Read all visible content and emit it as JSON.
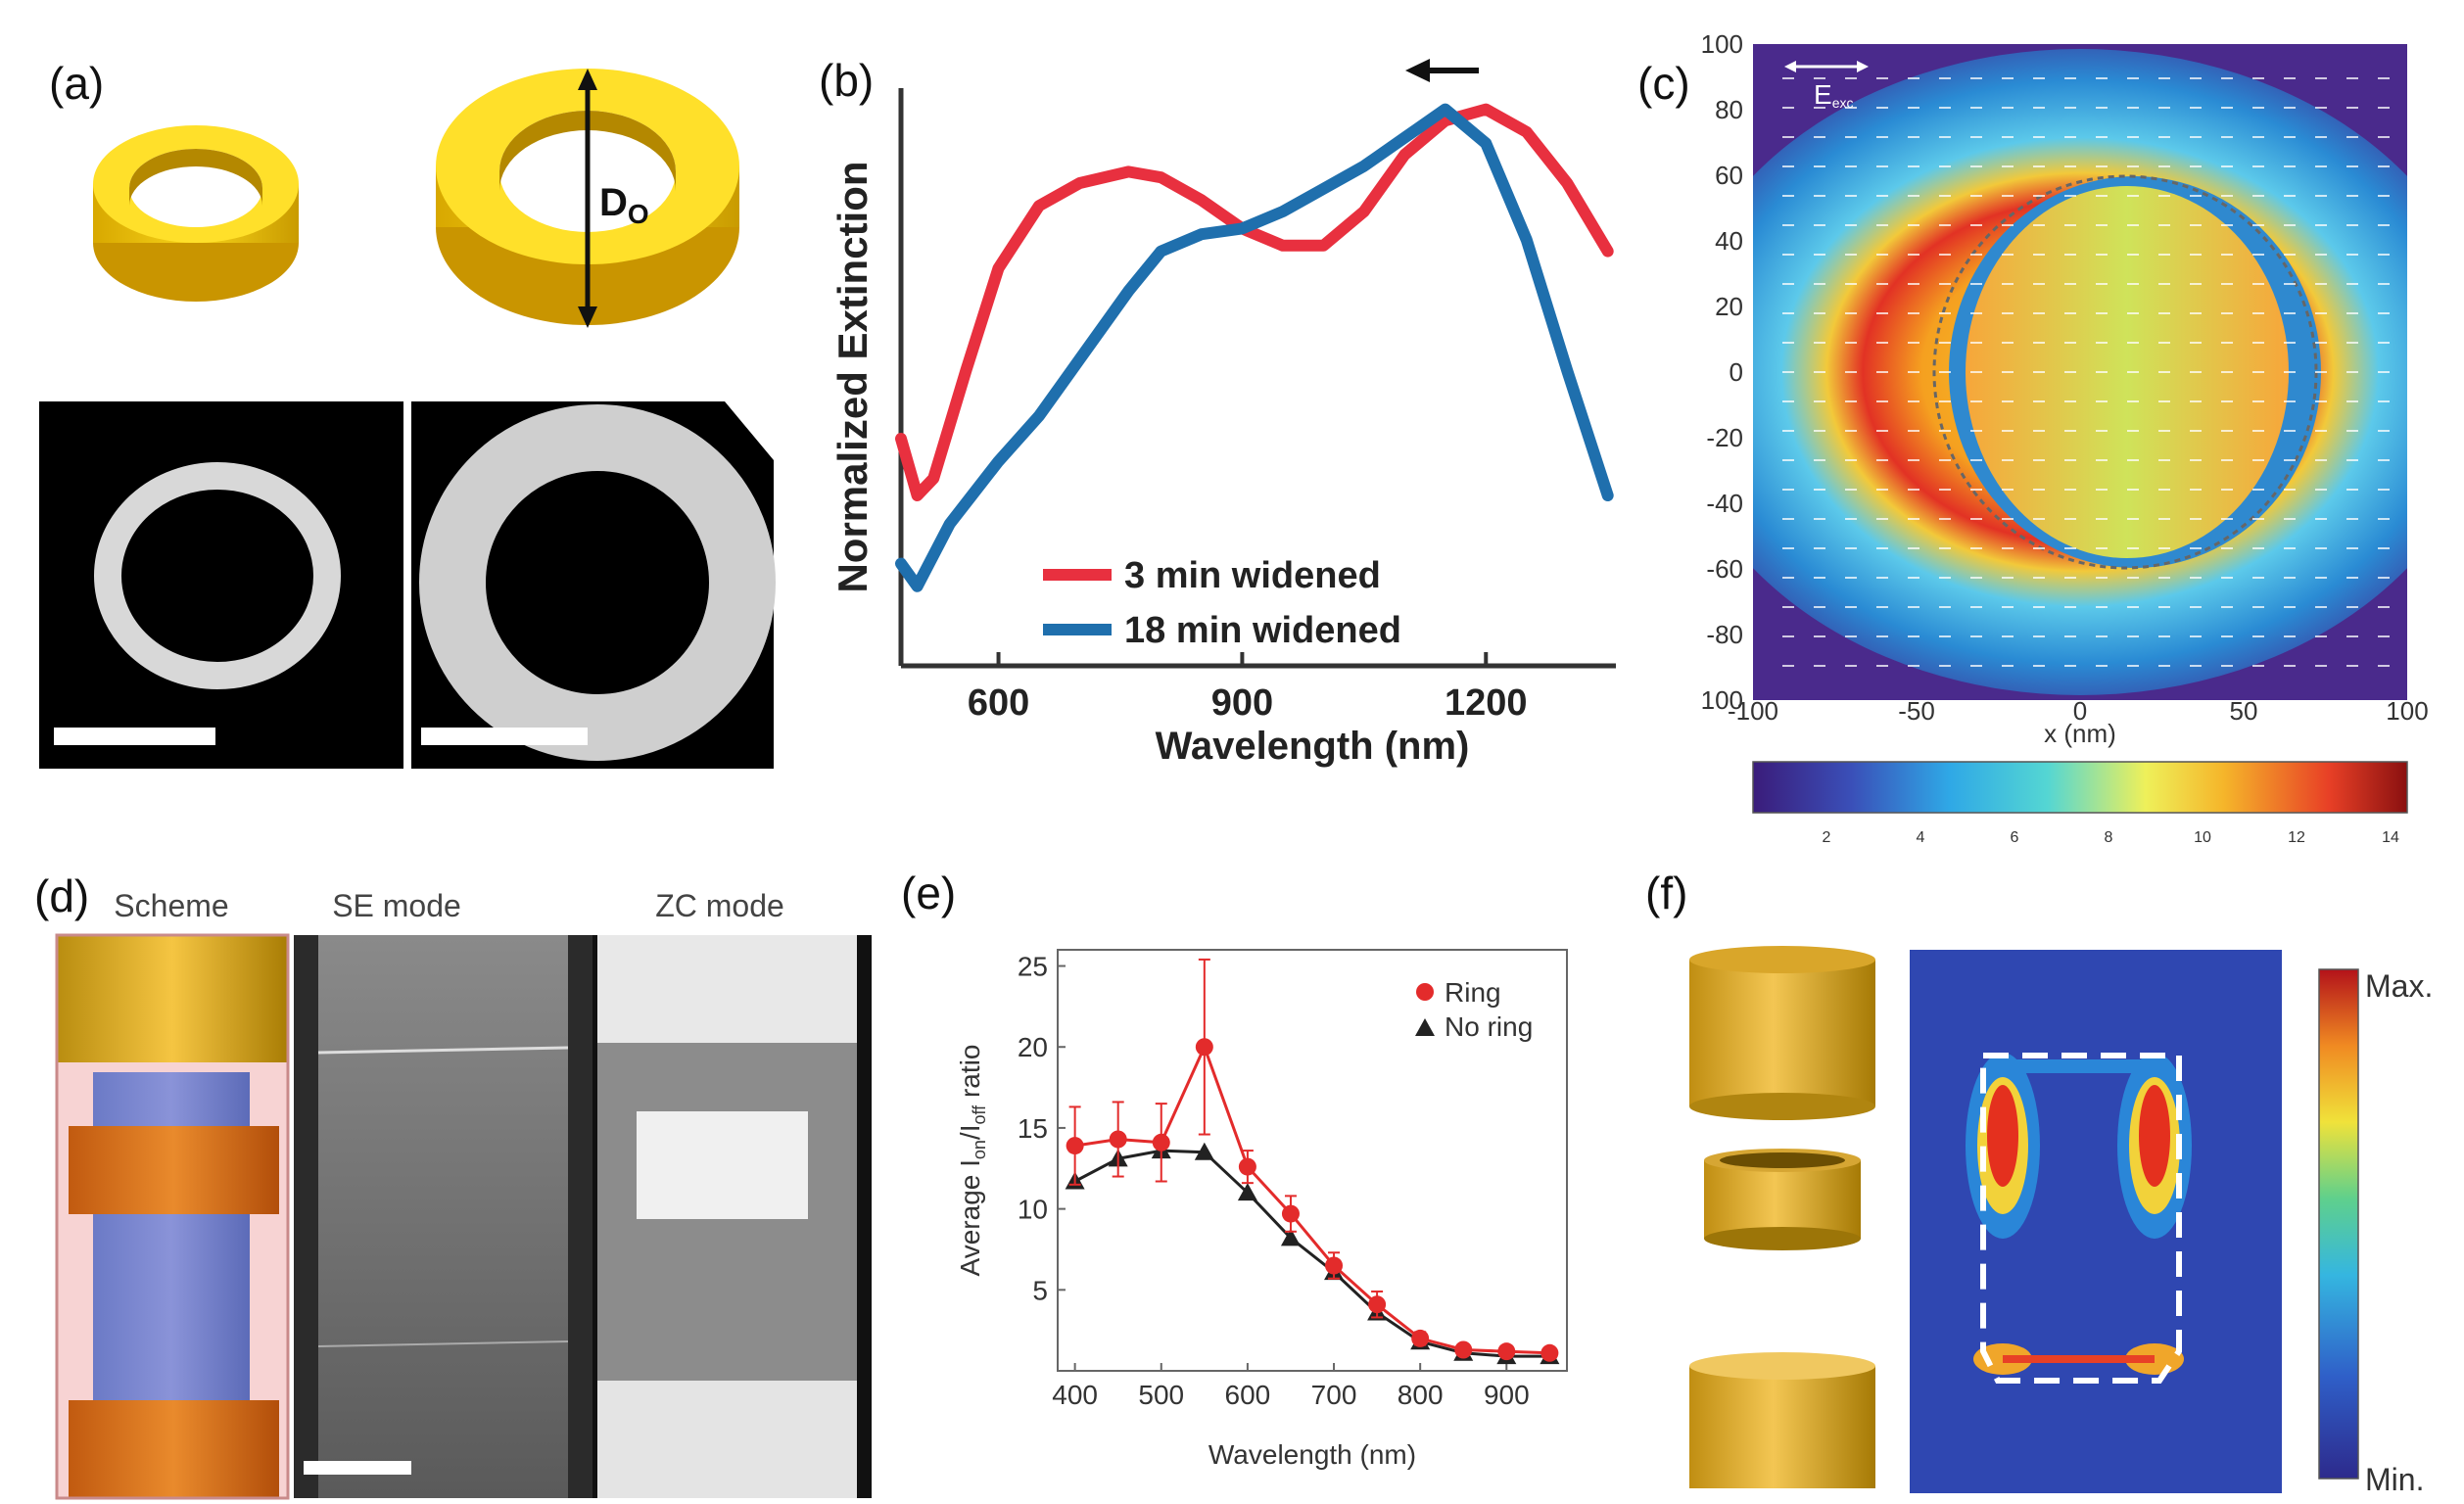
{
  "panels": {
    "a": {
      "label": "(a)",
      "diameter_label": "D",
      "diameter_sub": "O"
    },
    "b": {
      "label": "(b)",
      "chart_data": {
        "type": "line",
        "title": "",
        "xlabel": "Wavelength (nm)",
        "ylabel": "Normalized Extinction",
        "xlim": [
          480,
          1360
        ],
        "ylim": [
          0,
          1.0
        ],
        "xticks": [
          600,
          900,
          1200
        ],
        "series": [
          {
            "name": "3 min widened",
            "color": "#e8303f",
            "x": [
              480,
              500,
              520,
              560,
              600,
              650,
              700,
              760,
              800,
              850,
              900,
              950,
              1000,
              1050,
              1100,
              1150,
              1200,
              1250,
              1300,
              1350
            ],
            "y": [
              0.4,
              0.3,
              0.33,
              0.52,
              0.7,
              0.81,
              0.85,
              0.87,
              0.86,
              0.82,
              0.77,
              0.74,
              0.74,
              0.8,
              0.9,
              0.96,
              0.98,
              0.94,
              0.85,
              0.73
            ]
          },
          {
            "name": "18 min widened",
            "color": "#1f6fad",
            "x": [
              480,
              500,
              540,
              600,
              650,
              700,
              760,
              800,
              850,
              900,
              950,
              1000,
              1050,
              1100,
              1150,
              1200,
              1250,
              1300,
              1350
            ],
            "y": [
              0.18,
              0.14,
              0.25,
              0.36,
              0.44,
              0.54,
              0.66,
              0.73,
              0.76,
              0.77,
              0.8,
              0.84,
              0.88,
              0.93,
              0.98,
              0.92,
              0.75,
              0.52,
              0.3
            ]
          }
        ],
        "annotation": "arrow pointing left above peaks"
      }
    },
    "c": {
      "label": "(c)",
      "field_label": "E",
      "field_sub": "exc",
      "x_axis_label": "x (nm)",
      "x_ticks": [
        "-100",
        "-50",
        "0",
        "50",
        "100"
      ],
      "y_ticks": [
        "100",
        "80",
        "60",
        "40",
        "20",
        "0",
        "-20",
        "-40",
        "-60",
        "-80",
        "100"
      ],
      "colorbar_ticks": [
        "2",
        "4",
        "6",
        "8",
        "10",
        "12",
        "14"
      ]
    },
    "d": {
      "label": "(d)",
      "titles": [
        "Scheme",
        "SE mode",
        "ZC mode"
      ]
    },
    "e": {
      "label": "(e)",
      "chart_data": {
        "type": "line",
        "xlabel": "Wavelength (nm)",
        "ylabel": "Average I",
        "ylabel_sub1": "on",
        "ylabel_mid": "/I",
        "ylabel_sub2": "off",
        "ylabel_tail": " ratio",
        "xlim": [
          380,
          970
        ],
        "ylim": [
          0,
          26
        ],
        "xticks": [
          400,
          500,
          600,
          700,
          800,
          900
        ],
        "yticks": [
          5,
          10,
          15,
          20,
          25
        ],
        "series": [
          {
            "name": "Ring",
            "color": "#e32b2b",
            "marker": "circle",
            "x": [
              400,
              450,
              500,
              550,
              600,
              650,
              700,
              750,
              800,
              850,
              900,
              950
            ],
            "y": [
              13.9,
              14.3,
              14.1,
              20.0,
              12.6,
              9.7,
              6.5,
              4.1,
              2.0,
              1.3,
              1.2,
              1.1
            ],
            "err": [
              2.4,
              2.3,
              2.4,
              5.4,
              1.0,
              1.1,
              0.8,
              0.8,
              0.4,
              0.3,
              0.2,
              0.2
            ]
          },
          {
            "name": "No ring",
            "color": "#222222",
            "marker": "triangle",
            "x": [
              400,
              450,
              500,
              550,
              600,
              650,
              700,
              750,
              800,
              850,
              900,
              950
            ],
            "y": [
              11.7,
              13.1,
              13.6,
              13.5,
              11.0,
              8.2,
              6.1,
              3.6,
              1.8,
              1.1,
              0.9,
              0.9
            ],
            "err": [
              0,
              0,
              0,
              0,
              0,
              0,
              0,
              0,
              0,
              0,
              0,
              0
            ]
          }
        ]
      }
    },
    "f": {
      "label": "(f)",
      "max_label": "Max.",
      "min_label": "Min."
    }
  }
}
